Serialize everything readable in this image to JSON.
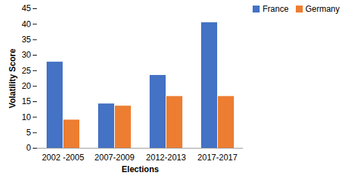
{
  "chart_data": {
    "type": "bar",
    "categories": [
      "2002 -2005",
      "2007-2009",
      "2012-2013",
      "2017-2017"
    ],
    "series": [
      {
        "name": "France",
        "color": "#4472c4",
        "values": [
          27.8,
          14.3,
          23.5,
          40.5
        ]
      },
      {
        "name": "Germany",
        "color": "#ed7d31",
        "values": [
          9.1,
          13.6,
          16.7,
          16.7
        ]
      }
    ],
    "x_label": "Elections",
    "y_label": "Volatility Score",
    "ylim": [
      0,
      45
    ],
    "yticks": [
      0,
      5,
      10,
      15,
      20,
      25,
      30,
      35,
      40,
      45
    ],
    "grid": false,
    "legend": "upper right"
  }
}
